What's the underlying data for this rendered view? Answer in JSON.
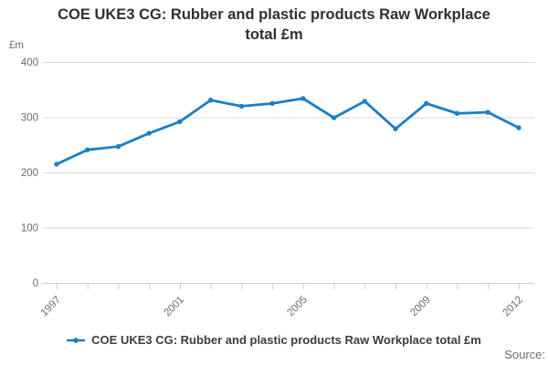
{
  "title": {
    "line1": "COE UKE3 CG: Rubber and plastic products Raw Workplace",
    "line2": "total £m"
  },
  "y_axis": {
    "unit": "£m",
    "ticks": [
      0,
      100,
      200,
      300,
      400
    ]
  },
  "x_axis": {
    "visible_labels": [
      "1997",
      "2001",
      "2005",
      "2009",
      "2012"
    ]
  },
  "legend": {
    "label": "COE UKE3 CG: Rubber and plastic products Raw Workplace total £m"
  },
  "source": {
    "label": "Source:"
  },
  "colors": {
    "line": "#1b7fc4",
    "grid": "#d9d9d9",
    "axis": "#c6cfd9",
    "tick_text": "#6b6b6b",
    "title_text": "#303030",
    "legend_text": "#3d3d3d",
    "source_text": "#6e6e6e"
  },
  "chart_data": {
    "type": "line",
    "title": "COE UKE3 CG: Rubber and plastic products Raw Workplace total £m",
    "xlabel": "",
    "ylabel": "£m",
    "x": [
      1997,
      1998,
      1999,
      2000,
      2001,
      2002,
      2003,
      2004,
      2005,
      2006,
      2007,
      2008,
      2009,
      2010,
      2011,
      2012
    ],
    "series": [
      {
        "name": "COE UKE3 CG: Rubber and plastic products Raw Workplace total £m",
        "values": [
          215,
          241,
          247,
          271,
          292,
          331,
          320,
          325,
          334,
          299,
          329,
          279,
          325,
          307,
          309,
          281
        ]
      }
    ],
    "ylim": [
      0,
      400
    ],
    "y_ticks": [
      0,
      100,
      200,
      300,
      400
    ],
    "x_tick_labels": [
      "1997",
      "2001",
      "2005",
      "2009",
      "2012"
    ],
    "x_tick_indices": [
      0,
      4,
      8,
      12,
      15
    ],
    "grid": "horizontal",
    "legend_position": "bottom"
  }
}
